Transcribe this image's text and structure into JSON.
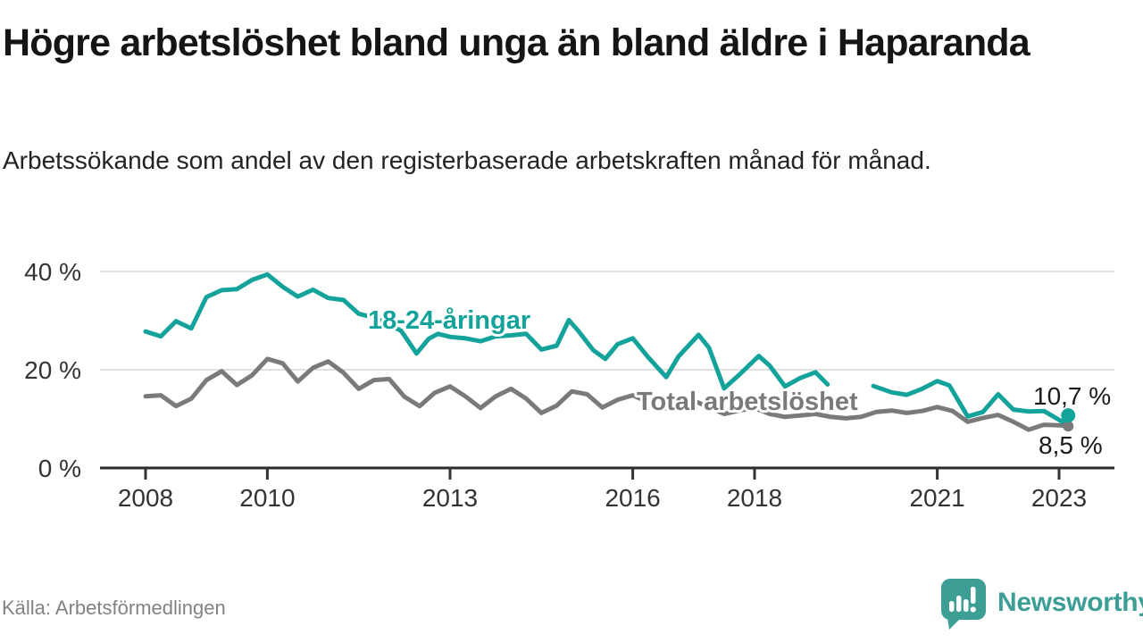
{
  "header": {
    "title": "Högre arbetslöshet bland unga än bland äldre i Haparanda",
    "subtitle": "Arbetssökande som andel av den registerbaserade arbetskraften månad för månad."
  },
  "footer": {
    "source": "Källa: Arbetsförmedlingen",
    "logo_text": "Newsworthy"
  },
  "colors": {
    "accent_teal": "#14a39a",
    "series_gray": "#7a7a7a",
    "grid": "#e0e0e0",
    "axis": "#2b2b2b",
    "tick_text": "#333333",
    "annotation_text": "#1a1a1a",
    "logo_teal": "#3d9e96",
    "source_text": "#828282"
  },
  "chart_data": {
    "type": "line",
    "title": "Högre arbetslöshet bland unga än bland äldre i Haparanda",
    "subtitle": "Arbetssökande som andel av den registerbaserade arbetskraften månad för månad.",
    "x_unit": "decimal_year",
    "xlim": [
      2007.25,
      2023.9
    ],
    "ylim": [
      0,
      43
    ],
    "grid": "horizontal",
    "legend_position": "inline-labels",
    "y_ticks": [
      0,
      20,
      40
    ],
    "y_tick_labels": [
      "0 %",
      "20 %",
      "40 %"
    ],
    "x_ticks": [
      2008,
      2010,
      2013,
      2016,
      2018,
      2021,
      2023
    ],
    "x_tick_labels": [
      "2008",
      "2010",
      "2013",
      "2016",
      "2018",
      "2021",
      "2023"
    ],
    "series": [
      {
        "name": "18-24-åringar",
        "label": "18-24-åringar",
        "color": "#14a39a",
        "end_label": "10,7 %",
        "end_value": 10.7,
        "dot_radius": 8,
        "points": [
          [
            2008.0,
            27.8
          ],
          [
            2008.25,
            26.8
          ],
          [
            2008.5,
            29.9
          ],
          [
            2008.75,
            28.4
          ],
          [
            2009.0,
            34.8
          ],
          [
            2009.25,
            36.2
          ],
          [
            2009.5,
            36.4
          ],
          [
            2009.75,
            38.3
          ],
          [
            2010.0,
            39.4
          ],
          [
            2010.25,
            36.9
          ],
          [
            2010.5,
            34.9
          ],
          [
            2010.75,
            36.3
          ],
          [
            2011.0,
            34.6
          ],
          [
            2011.25,
            34.2
          ],
          [
            2011.5,
            31.4
          ],
          [
            2011.75,
            30.6
          ],
          [
            2012.0,
            29.2
          ],
          [
            2012.2,
            27.9
          ],
          [
            2012.45,
            23.3
          ],
          [
            2012.65,
            26.3
          ],
          [
            2012.8,
            27.3
          ],
          [
            2013.0,
            26.7
          ],
          [
            2013.25,
            26.4
          ],
          [
            2013.5,
            25.8
          ],
          [
            2013.75,
            26.8
          ],
          [
            2014.0,
            27.0
          ],
          [
            2014.25,
            27.3
          ],
          [
            2014.5,
            24.1
          ],
          [
            2014.75,
            24.9
          ],
          [
            2014.95,
            30.1
          ],
          [
            2015.1,
            28.0
          ],
          [
            2015.35,
            24.0
          ],
          [
            2015.55,
            22.2
          ],
          [
            2015.75,
            25.2
          ],
          [
            2016.0,
            26.4
          ],
          [
            2016.25,
            22.6
          ],
          [
            2016.55,
            18.5
          ],
          [
            2016.75,
            22.7
          ],
          [
            2017.08,
            27.1
          ],
          [
            2017.25,
            24.5
          ],
          [
            2017.5,
            16.2
          ],
          [
            2017.75,
            19.0
          ],
          [
            2018.07,
            22.8
          ],
          [
            2018.25,
            20.8
          ],
          [
            2018.5,
            16.6
          ],
          [
            2018.75,
            18.3
          ],
          [
            2019.0,
            19.5
          ],
          [
            2019.2,
            17.0
          ],
          [
            2019.5,
            null
          ],
          [
            2019.95,
            16.7
          ],
          [
            2020.25,
            15.4
          ],
          [
            2020.5,
            14.9
          ],
          [
            2020.75,
            16.1
          ],
          [
            2021.0,
            17.7
          ],
          [
            2021.2,
            16.8
          ],
          [
            2021.5,
            10.5
          ],
          [
            2021.75,
            11.4
          ],
          [
            2022.0,
            15.0
          ],
          [
            2022.25,
            11.9
          ],
          [
            2022.5,
            11.5
          ],
          [
            2022.75,
            11.6
          ],
          [
            2023.0,
            9.8
          ],
          [
            2023.07,
            9.3
          ],
          [
            2023.15,
            10.7
          ]
        ]
      },
      {
        "name": "Total arbetslöshet",
        "label": "Total arbetslöshet",
        "color": "#7a7a7a",
        "end_label": "8,5 %",
        "end_value": 8.5,
        "dot_radius": 6,
        "points": [
          [
            2008.0,
            14.6
          ],
          [
            2008.25,
            14.8
          ],
          [
            2008.5,
            12.6
          ],
          [
            2008.75,
            14.1
          ],
          [
            2009.0,
            17.9
          ],
          [
            2009.25,
            19.7
          ],
          [
            2009.5,
            16.9
          ],
          [
            2009.75,
            18.9
          ],
          [
            2010.0,
            22.2
          ],
          [
            2010.25,
            21.3
          ],
          [
            2010.5,
            17.6
          ],
          [
            2010.75,
            20.4
          ],
          [
            2011.0,
            21.7
          ],
          [
            2011.25,
            19.4
          ],
          [
            2011.5,
            16.1
          ],
          [
            2011.75,
            17.9
          ],
          [
            2012.0,
            18.1
          ],
          [
            2012.25,
            14.5
          ],
          [
            2012.5,
            12.6
          ],
          [
            2012.75,
            15.3
          ],
          [
            2013.0,
            16.6
          ],
          [
            2013.25,
            14.6
          ],
          [
            2013.5,
            12.2
          ],
          [
            2013.75,
            14.6
          ],
          [
            2014.0,
            16.1
          ],
          [
            2014.25,
            14.1
          ],
          [
            2014.5,
            11.2
          ],
          [
            2014.75,
            12.7
          ],
          [
            2015.0,
            15.6
          ],
          [
            2015.25,
            15.0
          ],
          [
            2015.5,
            12.3
          ],
          [
            2015.75,
            13.9
          ],
          [
            2016.0,
            14.8
          ],
          [
            2016.25,
            13.4
          ],
          [
            2016.5,
            12.0
          ],
          [
            2016.75,
            12.9
          ],
          [
            2017.0,
            13.7
          ],
          [
            2017.25,
            12.4
          ],
          [
            2017.5,
            11.0
          ],
          [
            2017.75,
            11.7
          ],
          [
            2018.0,
            12.2
          ],
          [
            2018.25,
            11.0
          ],
          [
            2018.5,
            10.4
          ],
          [
            2018.75,
            10.7
          ],
          [
            2019.0,
            11.0
          ],
          [
            2019.25,
            10.4
          ],
          [
            2019.5,
            10.1
          ],
          [
            2019.75,
            10.4
          ],
          [
            2020.0,
            11.4
          ],
          [
            2020.25,
            11.7
          ],
          [
            2020.5,
            11.2
          ],
          [
            2020.75,
            11.6
          ],
          [
            2021.0,
            12.4
          ],
          [
            2021.25,
            11.6
          ],
          [
            2021.5,
            9.4
          ],
          [
            2021.75,
            10.2
          ],
          [
            2022.0,
            10.8
          ],
          [
            2022.25,
            9.4
          ],
          [
            2022.5,
            7.8
          ],
          [
            2022.75,
            8.8
          ],
          [
            2023.0,
            8.7
          ],
          [
            2023.15,
            8.5
          ]
        ]
      }
    ]
  }
}
